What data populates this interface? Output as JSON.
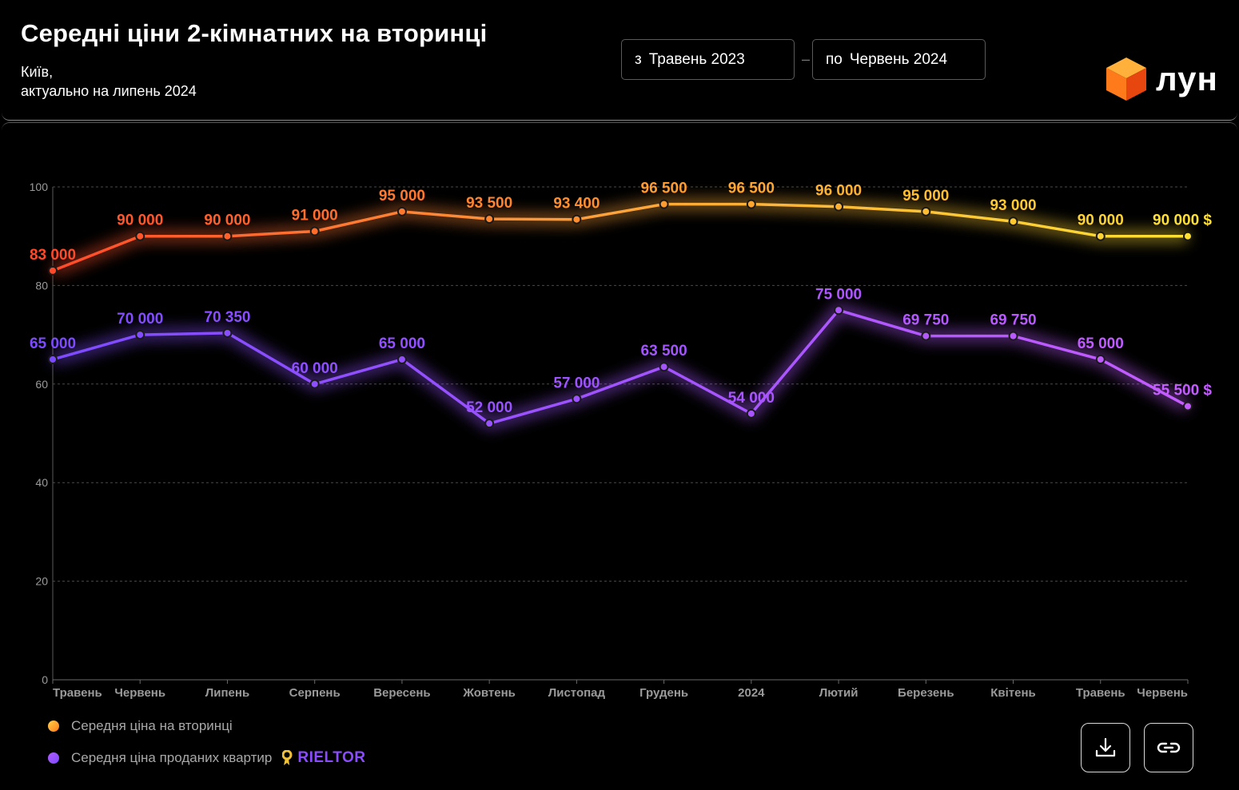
{
  "header": {
    "title": "Середні ціни 2-кімнатних на вторинці",
    "subtitle_line1": "Київ,",
    "subtitle_line2": "актуально на липень 2024",
    "range_from": {
      "prefix": "з",
      "value": "Травень 2023"
    },
    "range_to": {
      "prefix": "по",
      "value": "Червень 2024"
    },
    "range_separator": "–",
    "logo_text": "лун"
  },
  "legend": {
    "item1": "Середня ціна на вторинці",
    "item2": "Середня ціна проданих квартир",
    "source_logo": "RIELTOR"
  },
  "colors": {
    "orange_start": "#ff4a2a",
    "orange_end": "#ffe033",
    "purple_start": "#7d4bff",
    "purple_end": "#c45cff",
    "gold_icon": "#f0c23a"
  },
  "icons": {
    "download": "download-icon",
    "link": "link-icon",
    "logo": "cube-logo-icon"
  },
  "chart_data": {
    "type": "line",
    "categories": [
      "Травень",
      "Червень",
      "Липень",
      "Серпень",
      "Вересень",
      "Жовтень",
      "Листопад",
      "Грудень",
      "2024",
      "Лютий",
      "Березень",
      "Квітень",
      "Травень",
      "Червень"
    ],
    "yticks": [
      "0",
      "20",
      "40",
      "60",
      "80",
      "100"
    ],
    "ylim": [
      0,
      100
    ],
    "grid": true,
    "unit_suffix": " $",
    "series": [
      {
        "name": "Середня ціна на вторинці",
        "values": [
          83000,
          90000,
          90000,
          91000,
          95000,
          93500,
          93400,
          96500,
          96500,
          96000,
          95000,
          93000,
          90000,
          90000
        ],
        "labels": [
          "83 000",
          "90 000",
          "90 000",
          "91 000",
          "95 000",
          "93 500",
          "93 400",
          "96 500",
          "96 500",
          "96 000",
          "95 000",
          "93 000",
          "90 000",
          "90 000 $"
        ]
      },
      {
        "name": "Середня ціна проданих квартир",
        "values": [
          65000,
          70000,
          70350,
          60000,
          65000,
          52000,
          57000,
          63500,
          54000,
          75000,
          69750,
          69750,
          65000,
          55500
        ],
        "labels": [
          "65 000",
          "70 000",
          "70 350",
          "60 000",
          "65 000",
          "52 000",
          "57 000",
          "63 500",
          "54 000",
          "75 000",
          "69 750",
          "69 750",
          "65 000",
          "55 500 $"
        ]
      }
    ]
  }
}
